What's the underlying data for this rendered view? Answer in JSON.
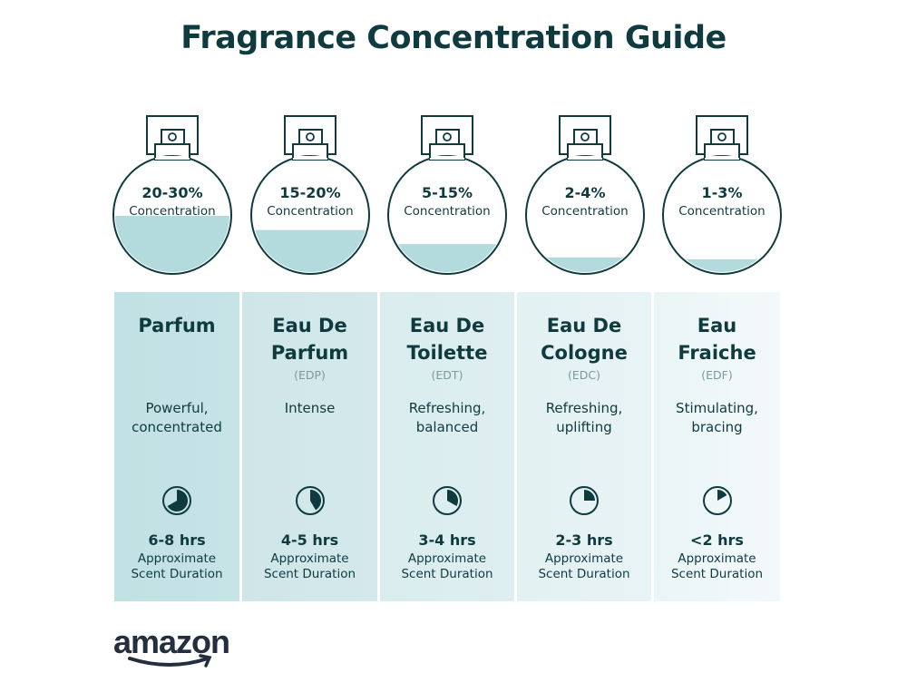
{
  "title": "Fragrance Concentration Guide",
  "colors": {
    "text": "#0f3b3f",
    "liquid": "#b3dbde",
    "panel_start": "#c2e1e4",
    "panel_end": "#eff7f8"
  },
  "duration_label": "Approximate Scent Duration",
  "approx_word": "Approximate",
  "scent_word": "Scent Duration",
  "concentration_label": "Concentration",
  "types": [
    {
      "pct": "20-30%",
      "fill": 0.25,
      "name1": "Parfum",
      "name2": "",
      "abbr": "",
      "desc1": "Powerful,",
      "desc2": "concentrated",
      "hrs": "6-8 hrs",
      "clock_fraction": 0.667
    },
    {
      "pct": "15-20%",
      "fill": 0.175,
      "name1": "Eau De",
      "name2": "Parfum",
      "abbr": "(EDP)",
      "desc1": "Intense",
      "desc2": "",
      "hrs": "4-5 hrs",
      "clock_fraction": 0.417
    },
    {
      "pct": "5-15%",
      "fill": 0.1,
      "name1": "Eau De",
      "name2": "Toilette",
      "abbr": "(EDT)",
      "desc1": "Refreshing,",
      "desc2": "balanced",
      "hrs": "3-4 hrs",
      "clock_fraction": 0.333
    },
    {
      "pct": "2-4%",
      "fill": 0.03,
      "name1": "Eau De",
      "name2": "Cologne",
      "abbr": "(EDC)",
      "desc1": "Refreshing,",
      "desc2": "uplifting",
      "hrs": "2-3 hrs",
      "clock_fraction": 0.25
    },
    {
      "pct": "1-3%",
      "fill": 0.02,
      "name1": "Eau",
      "name2": "Fraiche",
      "abbr": "(EDF)",
      "desc1": "Stimulating,",
      "desc2": "bracing",
      "hrs": "<2 hrs",
      "clock_fraction": 0.167
    }
  ],
  "logo": "amazon"
}
